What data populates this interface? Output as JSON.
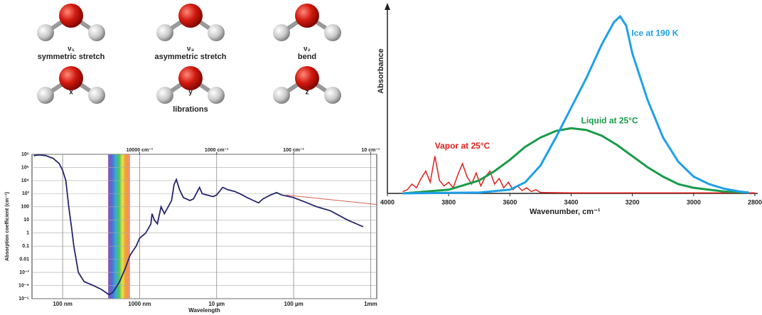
{
  "diagram": {
    "molecules": [
      {
        "symbol": "ν₁",
        "name": "symmetric stretch"
      },
      {
        "symbol": "ν₃",
        "name": "asymmetric stretch"
      },
      {
        "symbol": "ν₂",
        "name": "bend"
      },
      {
        "symbol": "x"
      },
      {
        "symbol": "y"
      },
      {
        "symbol": "z"
      }
    ],
    "group_label": "librations"
  },
  "chart_data": [
    {
      "type": "line",
      "x_scale": "log",
      "y_scale": "log",
      "grid": true,
      "xlabel": "Wavelength",
      "ylabel": "Absorption coefficient (cm⁻¹)",
      "xlim": [
        40,
        1200000
      ],
      "ylim": [
        1e-05,
        1000000
      ],
      "xticks": [
        {
          "value": 100,
          "label": "100 nm"
        },
        {
          "value": 1000,
          "label": "1000 nm"
        },
        {
          "value": 10000,
          "label": "10 µm"
        },
        {
          "value": 100000,
          "label": "100 µm"
        },
        {
          "value": 1000000,
          "label": "1mm"
        }
      ],
      "x2ticks": [
        {
          "value": 1000,
          "label": "10000 cm⁻¹"
        },
        {
          "value": 10000,
          "label": "1000 cm⁻¹"
        },
        {
          "value": 100000,
          "label": "100 cm⁻¹"
        },
        {
          "value": 1000000,
          "label": "10 cm⁻¹"
        }
      ],
      "yticks": [
        {
          "value": 1000000,
          "label": "10⁶"
        },
        {
          "value": 100000,
          "label": "10⁵"
        },
        {
          "value": 10000,
          "label": "10⁴"
        },
        {
          "value": 1000,
          "label": "10³"
        },
        100,
        10,
        1,
        0.1,
        0.01,
        {
          "value": 0.001,
          "label": "10⁻³"
        },
        {
          "value": 0.0001,
          "label": "10⁻⁴"
        },
        {
          "value": 1e-05,
          "label": "10⁻⁵"
        }
      ],
      "visible_band": [
        390,
        750
      ],
      "series": [
        {
          "color": "#26266b",
          "x": [
            42,
            50,
            60,
            75,
            90,
            100,
            110,
            120,
            130,
            140,
            160,
            190,
            250,
            320,
            400,
            450,
            550,
            650,
            750,
            900,
            1000,
            1200,
            1400,
            1450,
            1550,
            1700,
            1900,
            2100,
            2600,
            2800,
            3000,
            3300,
            3700,
            4500,
            5000,
            6000,
            6500,
            7500,
            9000,
            10000,
            12000,
            14000,
            17000,
            20000,
            25000,
            30000,
            35000,
            40000,
            50000,
            60000,
            70000,
            100000,
            150000,
            200000,
            300000,
            500000,
            800000
          ],
          "values": [
            800000,
            900000,
            800000,
            500000,
            200000,
            60000,
            10000,
            100,
            3,
            0.1,
            0.001,
            0.0002,
            0.0001,
            5e-05,
            2e-05,
            3e-05,
            0.0002,
            0.002,
            0.02,
            0.1,
            0.4,
            1,
            5,
            30,
            10,
            5,
            100,
            30,
            300,
            5000,
            12000,
            2000,
            500,
            300,
            400,
            3000,
            1000,
            800,
            600,
            800,
            3000,
            2000,
            1500,
            1000,
            500,
            300,
            200,
            400,
            800,
            1200,
            800,
            500,
            200,
            100,
            50,
            10,
            3
          ]
        },
        {
          "color": "#d9604a",
          "x": [
            80000,
            1200000
          ],
          "values": [
            800,
            150
          ]
        }
      ]
    },
    {
      "type": "line",
      "xlabel": "Wavenumber, cm⁻¹",
      "ylabel": "Absorbance",
      "xlim": [
        4000,
        2800
      ],
      "ylim": [
        0,
        1
      ],
      "xticks": [
        4000,
        3800,
        3600,
        3400,
        3200,
        3000,
        2800
      ],
      "series": [
        {
          "name": "Vapor at 25°C",
          "color": "#e0201b",
          "x": [
            3950,
            3935,
            3920,
            3905,
            3890,
            3875,
            3860,
            3845,
            3830,
            3815,
            3800,
            3785,
            3770,
            3755,
            3740,
            3725,
            3710,
            3695,
            3680,
            3665,
            3650,
            3635,
            3620,
            3605,
            3590,
            3575,
            3560,
            3545,
            3530,
            3515,
            3500,
            3400,
            3000,
            2800
          ],
          "values": [
            0.01,
            0.02,
            0.05,
            0.03,
            0.08,
            0.12,
            0.06,
            0.2,
            0.07,
            0.04,
            0.06,
            0.03,
            0.1,
            0.16,
            0.09,
            0.05,
            0.11,
            0.04,
            0.09,
            0.12,
            0.05,
            0.08,
            0.03,
            0.06,
            0.02,
            0.04,
            0.015,
            0.03,
            0.01,
            0.02,
            0.005,
            0.003,
            0.003,
            0.003
          ]
        },
        {
          "name": "Liquid at 25°C",
          "color": "#1a9b4a",
          "x": [
            3950,
            3800,
            3700,
            3650,
            3600,
            3550,
            3500,
            3450,
            3400,
            3350,
            3300,
            3250,
            3200,
            3150,
            3100,
            3050,
            3000,
            2900,
            2820
          ],
          "values": [
            0,
            0.02,
            0.07,
            0.12,
            0.18,
            0.25,
            0.3,
            0.335,
            0.35,
            0.34,
            0.31,
            0.26,
            0.2,
            0.14,
            0.09,
            0.05,
            0.03,
            0.01,
            0.005
          ]
        },
        {
          "name": "Ice at 190 K",
          "color": "#1ea0e6",
          "x": [
            3950,
            3700,
            3600,
            3550,
            3500,
            3450,
            3400,
            3350,
            3300,
            3260,
            3240,
            3220,
            3200,
            3150,
            3100,
            3050,
            3000,
            2950,
            2900,
            2850,
            2820
          ],
          "values": [
            0,
            0.005,
            0.02,
            0.06,
            0.15,
            0.3,
            0.46,
            0.62,
            0.8,
            0.92,
            0.95,
            0.9,
            0.75,
            0.5,
            0.3,
            0.17,
            0.09,
            0.05,
            0.025,
            0.01,
            0.005
          ]
        }
      ]
    }
  ]
}
